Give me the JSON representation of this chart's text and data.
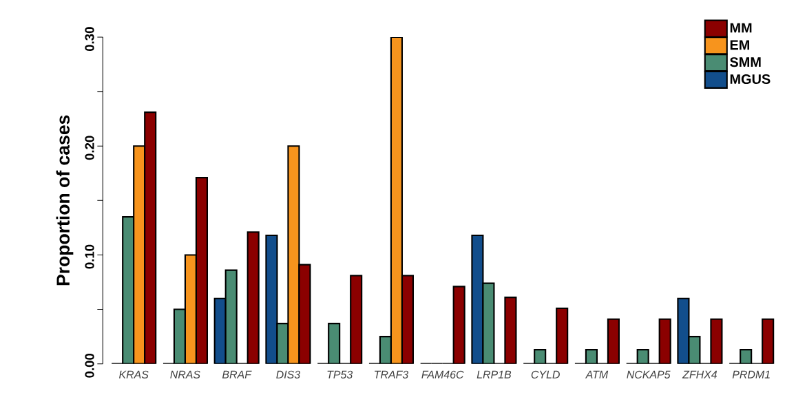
{
  "chart_data": {
    "type": "bar",
    "ylabel": "Proportion of cases",
    "categories": [
      "*KRAS*",
      "*NRAS*",
      "*BRAF*",
      "*DIS3*",
      "*TP53*",
      "*TRAF3*",
      "*FAM46C*",
      "*LRP1B*",
      "*CYLD*",
      "*ATM*",
      "*NCKAP5*",
      "*ZFHX4*",
      "*PRDM1*"
    ],
    "series": [
      {
        "name": "MGUS",
        "color": "#124e8c",
        "values": [
          0,
          0,
          0.06,
          0.118,
          0,
          0,
          0,
          0.118,
          0,
          0,
          0,
          0.06,
          0
        ]
      },
      {
        "name": "SMM",
        "color": "#4a8c73",
        "values": [
          0.135,
          0.05,
          0.086,
          0.037,
          0.037,
          0.025,
          0,
          0.074,
          0.013,
          0.013,
          0.013,
          0.025,
          0.013
        ]
      },
      {
        "name": "EM",
        "color": "#f7941d",
        "values": [
          0.2,
          0.1,
          0,
          0.2,
          0,
          0.3,
          0,
          0,
          0,
          0,
          0,
          0,
          0
        ]
      },
      {
        "name": "MM",
        "color": "#8b0000",
        "values": [
          0.231,
          0.171,
          0.121,
          0.091,
          0.081,
          0.081,
          0.071,
          0.061,
          0.051,
          0.041,
          0.041,
          0.041,
          0.041
        ]
      }
    ],
    "ylim": [
      0,
      0.3
    ],
    "yticks": [
      {
        "value": 0,
        "label": "0.00"
      },
      {
        "value": 0.05,
        "label": null
      },
      {
        "value": 0.1,
        "label": "0.10"
      },
      {
        "value": 0.15,
        "label": null
      },
      {
        "value": 0.2,
        "label": "0.20"
      },
      {
        "value": 0.25,
        "label": null
      },
      {
        "value": 0.3,
        "label": "0.30"
      }
    ],
    "legend": "top right",
    "grid": false
  }
}
